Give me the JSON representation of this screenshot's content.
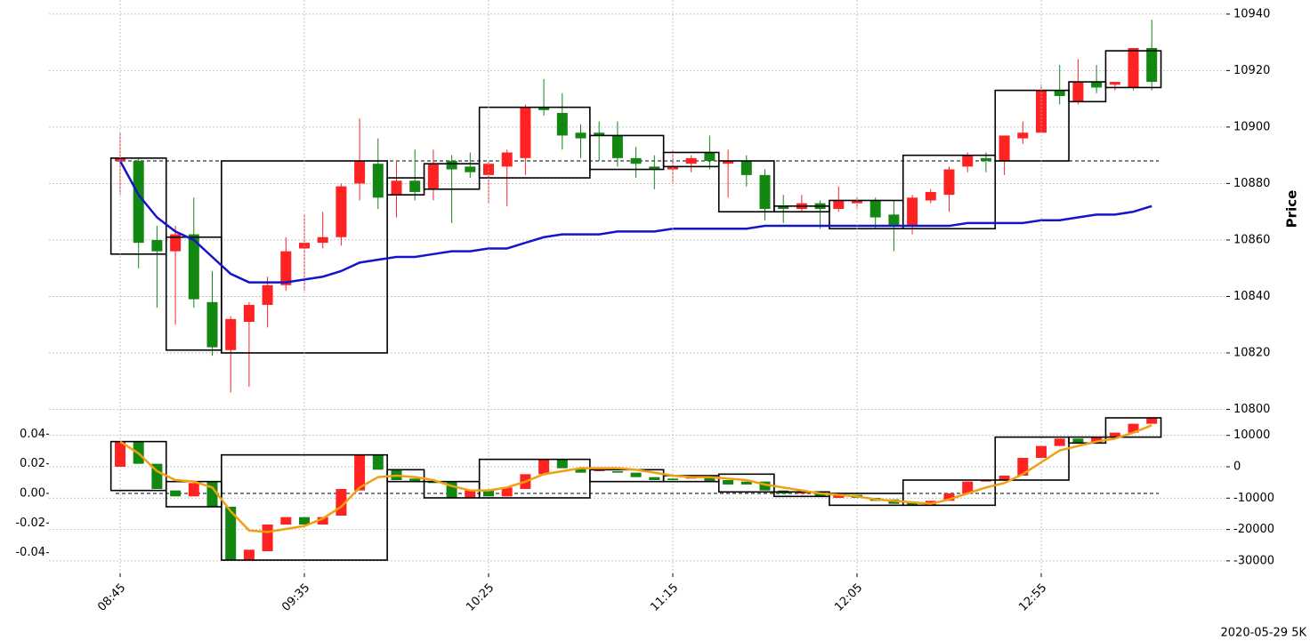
{
  "chart_data": [
    {
      "type": "candlestick",
      "ylabel": "Price",
      "ylim": [
        10797,
        10945
      ],
      "yticks": [
        10800,
        10820,
        10840,
        10860,
        10880,
        10900,
        10920,
        10940
      ],
      "grid": true,
      "up_color": "#ff2222",
      "down_color": "#128812",
      "open": [
        10888,
        10888,
        10860,
        10856,
        10862,
        10838,
        10821,
        10831,
        10837,
        10844,
        10857,
        10859,
        10861,
        10880,
        10887,
        10876,
        10881,
        10878,
        10888,
        10886,
        10883,
        10886,
        10889,
        10907,
        10905,
        10898,
        10898,
        10897,
        10889,
        10886,
        10885,
        10887,
        10891,
        10887,
        10888,
        10883,
        10872,
        10871,
        10873,
        10871,
        10873,
        10874,
        10869,
        10865,
        10874,
        10876,
        10886,
        10889,
        10888,
        10896,
        10898,
        10913,
        10909,
        10916,
        10915,
        10914,
        10928
      ],
      "high": [
        10898,
        10889,
        10865,
        10865,
        10875,
        10849,
        10833,
        10838,
        10847,
        10861,
        10869,
        10870,
        10880,
        10903,
        10896,
        10888,
        10892,
        10892,
        10890,
        10891,
        10888,
        10892,
        10908,
        10917,
        10912,
        10901,
        10902,
        10902,
        10893,
        10890,
        10892,
        10890,
        10897,
        10892,
        10890,
        10885,
        10876,
        10876,
        10874,
        10879,
        10875,
        10875,
        10874,
        10876,
        10878,
        10886,
        10891,
        10891,
        10897,
        10902,
        10915,
        10922,
        10924,
        10922,
        10916,
        10928,
        10938
      ],
      "low": [
        10876,
        10850,
        10836,
        10830,
        10836,
        10819,
        10806,
        10808,
        10829,
        10842,
        10842,
        10857,
        10858,
        10874,
        10871,
        10868,
        10874,
        10874,
        10866,
        10882,
        10873,
        10872,
        10883,
        10904,
        10892,
        10889,
        10888,
        10886,
        10882,
        10878,
        10880,
        10884,
        10885,
        10875,
        10879,
        10867,
        10866,
        10870,
        10864,
        10870,
        10871,
        10864,
        10856,
        10862,
        10873,
        10870,
        10884,
        10884,
        10883,
        10894,
        10898,
        10908,
        10908,
        10912,
        10913,
        10913,
        10913
      ],
      "close": [
        10889,
        10859,
        10856,
        10862,
        10839,
        10822,
        10832,
        10837,
        10844,
        10856,
        10859,
        10861,
        10879,
        10888,
        10875,
        10881,
        10877,
        10887,
        10885,
        10884,
        10887,
        10891,
        10907,
        10906,
        10897,
        10896,
        10897,
        10889,
        10887,
        10885,
        10886,
        10889,
        10888,
        10888,
        10883,
        10871,
        10871,
        10873,
        10871,
        10874,
        10874,
        10868,
        10865,
        10875,
        10877,
        10885,
        10890,
        10888,
        10897,
        10898,
        10913,
        10911,
        10916,
        10914,
        10916,
        10928,
        10916
      ],
      "line": {
        "color": "#1414c8",
        "values": [
          10888,
          10876,
          10868,
          10863,
          10860,
          10854,
          10848,
          10845,
          10845,
          10845,
          10846,
          10847,
          10849,
          10852,
          10853,
          10854,
          10854,
          10855,
          10856,
          10856,
          10857,
          10857,
          10859,
          10861,
          10862,
          10862,
          10862,
          10863,
          10863,
          10863,
          10864,
          10864,
          10864,
          10864,
          10864,
          10865,
          10865,
          10865,
          10865,
          10865,
          10865,
          10865,
          10865,
          10865,
          10865,
          10865,
          10866,
          10866,
          10866,
          10866,
          10867,
          10867,
          10868,
          10869,
          10869,
          10870,
          10872
        ]
      },
      "boxes": {
        "start": [
          0,
          3,
          6,
          15,
          17,
          20,
          26,
          30,
          33,
          36,
          39,
          43,
          48,
          52,
          54
        ],
        "end": [
          2,
          5,
          14,
          16,
          19,
          25,
          29,
          32,
          35,
          38,
          42,
          47,
          51,
          53,
          56
        ],
        "high": [
          10889,
          10861,
          10888,
          10882,
          10887,
          10907,
          10897,
          10891,
          10888,
          10872,
          10874,
          10890,
          10913,
          10916,
          10927
        ],
        "low": [
          10855,
          10821,
          10820,
          10876,
          10878,
          10882,
          10885,
          10886,
          10870,
          10870,
          10864,
          10864,
          10888,
          10909,
          10914
        ]
      },
      "hline": 10888
    },
    {
      "type": "candlestick",
      "ylim": [
        -0.054,
        0.054
      ],
      "yticks": [
        0.04,
        0.02,
        {
          "value": 0,
          "label": "0.00"
        },
        -0.02,
        -0.04
      ],
      "y2lim": [
        -34000,
        17000
      ],
      "y2ticks": [
        10000,
        0,
        -10000,
        -20000,
        -30000
      ],
      "grid": true,
      "up_color": "#ff2222",
      "down_color": "#128812",
      "categories": [
        "08:45",
        null,
        null,
        null,
        null,
        null,
        null,
        null,
        null,
        null,
        "09:35",
        null,
        null,
        null,
        null,
        null,
        null,
        null,
        null,
        null,
        "10:25",
        null,
        null,
        null,
        null,
        null,
        null,
        null,
        null,
        null,
        "11:15",
        null,
        null,
        null,
        null,
        null,
        null,
        null,
        null,
        null,
        "12:05",
        null,
        null,
        null,
        null,
        null,
        null,
        null,
        null,
        null,
        "12:55",
        null,
        null,
        null,
        null,
        null,
        null
      ],
      "open": [
        0.018,
        0.035,
        0.02,
        0.002,
        -0.002,
        0.008,
        -0.009,
        -0.045,
        -0.039,
        -0.021,
        -0.016,
        -0.021,
        -0.015,
        0.002,
        0.026,
        0.016,
        0.01,
        0.008,
        0.008,
        -0.003,
        0.002,
        -0.002,
        0.003,
        0.013,
        0.023,
        0.017,
        0.015,
        0.015,
        0.014,
        0.011,
        0.01,
        0.01,
        0.011,
        0.009,
        0.008,
        0.008,
        0.002,
        0.0,
        0.001,
        -0.003,
        -0.001,
        -0.003,
        -0.004,
        -0.006,
        -0.008,
        -0.005,
        0.0,
        0.008,
        0.009,
        0.012,
        0.024,
        0.032,
        0.037,
        0.034,
        0.038,
        0.041,
        0.047
      ],
      "close": [
        0.035,
        0.02,
        0.003,
        -0.002,
        0.007,
        -0.009,
        -0.045,
        -0.038,
        -0.021,
        -0.016,
        -0.021,
        -0.016,
        0.003,
        0.026,
        0.016,
        0.009,
        0.008,
        0.007,
        -0.003,
        0.002,
        -0.002,
        0.004,
        0.013,
        0.023,
        0.017,
        0.014,
        0.016,
        0.014,
        0.011,
        0.009,
        0.009,
        0.011,
        0.008,
        0.006,
        0.006,
        0.002,
        0.0,
        0.001,
        -0.002,
        -0.001,
        -0.003,
        -0.005,
        -0.007,
        -0.008,
        -0.005,
        0.0,
        0.008,
        0.009,
        0.012,
        0.024,
        0.032,
        0.037,
        0.034,
        0.038,
        0.041,
        0.047,
        0.051
      ],
      "line": {
        "color": "#f0a010",
        "values": [
          0.035,
          0.027,
          0.015,
          0.009,
          0.008,
          0.004,
          -0.012,
          -0.025,
          -0.026,
          -0.024,
          -0.022,
          -0.017,
          -0.009,
          0.004,
          0.011,
          0.012,
          0.011,
          0.009,
          0.005,
          0.002,
          0.002,
          0.004,
          0.008,
          0.013,
          0.015,
          0.017,
          0.017,
          0.017,
          0.016,
          0.014,
          0.012,
          0.011,
          0.011,
          0.01,
          0.009,
          0.006,
          0.004,
          0.002,
          0.0,
          -0.001,
          -0.002,
          -0.004,
          -0.005,
          -0.006,
          -0.007,
          -0.004,
          0.0,
          0.004,
          0.007,
          0.013,
          0.021,
          0.029,
          0.032,
          0.035,
          0.037,
          0.041,
          0.046
        ]
      },
      "boxes": {
        "start": [
          0,
          3,
          6,
          15,
          17,
          20,
          26,
          30,
          33,
          36,
          39,
          43,
          48,
          52,
          54
        ],
        "end": [
          2,
          5,
          14,
          16,
          19,
          25,
          29,
          32,
          35,
          38,
          42,
          47,
          51,
          53,
          56
        ],
        "high": [
          0.035,
          0.008,
          0.026,
          0.016,
          0.008,
          0.023,
          0.016,
          0.012,
          0.013,
          0.001,
          0.0,
          0.009,
          0.038,
          0.038,
          0.051
        ],
        "low": [
          0.002,
          -0.009,
          -0.045,
          0.008,
          -0.003,
          -0.003,
          0.008,
          0.008,
          0.001,
          -0.002,
          -0.008,
          -0.008,
          0.009,
          0.034,
          0.038
        ]
      },
      "hline": 0
    }
  ],
  "caption": "2020-05-29 5K"
}
